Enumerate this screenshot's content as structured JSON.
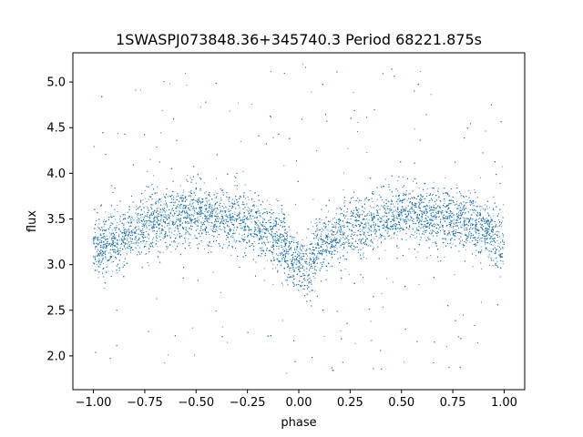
{
  "chart_data": {
    "type": "scatter",
    "title": "1SWASPJ073848.36+345740.3 Period 68221.875s",
    "xlabel": "phase",
    "ylabel": "flux",
    "xlim": [
      -1.1,
      1.1
    ],
    "ylim": [
      1.63,
      5.32
    ],
    "x_ticks": [
      -1.0,
      -0.75,
      -0.5,
      -0.25,
      0.0,
      0.25,
      0.5,
      0.75,
      1.0
    ],
    "x_tick_labels": [
      "−1.00",
      "−0.75",
      "−0.50",
      "−0.25",
      "0.00",
      "0.25",
      "0.50",
      "0.75",
      "1.00"
    ],
    "y_ticks": [
      2.0,
      2.5,
      3.0,
      3.5,
      4.0,
      4.5,
      5.0
    ],
    "y_tick_labels": [
      "2.0",
      "2.5",
      "3.0",
      "3.5",
      "4.0",
      "4.5",
      "5.0"
    ],
    "grid": false,
    "legend": "none",
    "marker_color": "#1f77b4",
    "marker": "point",
    "series": [
      {
        "phase_range": [
          -1.0,
          1.0
        ],
        "profile": {
          "phase": [
            -1.0,
            -0.9,
            -0.75,
            -0.5,
            -0.25,
            -0.1,
            -0.05,
            0.0,
            0.05,
            0.1,
            0.25,
            0.5,
            0.75,
            0.9,
            1.0
          ],
          "median_flux": [
            3.15,
            3.25,
            3.45,
            3.55,
            3.45,
            3.3,
            3.15,
            3.0,
            2.95,
            3.2,
            3.4,
            3.55,
            3.5,
            3.4,
            3.2
          ]
        },
        "flux_range": [
          1.8,
          5.2
        ]
      }
    ]
  }
}
